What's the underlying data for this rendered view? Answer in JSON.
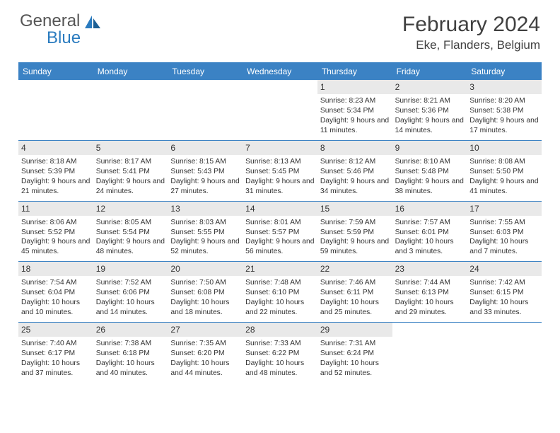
{
  "logo": {
    "text_general": "General",
    "text_blue": "Blue"
  },
  "title": "February 2024",
  "location": "Eke, Flanders, Belgium",
  "colors": {
    "header_blue": "#3b82c4",
    "day_num_bg": "#e9e9e9",
    "text": "#404040",
    "logo_gray": "#565656",
    "logo_blue": "#2a7bbf"
  },
  "days_of_week": [
    "Sunday",
    "Monday",
    "Tuesday",
    "Wednesday",
    "Thursday",
    "Friday",
    "Saturday"
  ],
  "weeks": [
    [
      {
        "n": "",
        "sr": "",
        "ss": "",
        "dl": ""
      },
      {
        "n": "",
        "sr": "",
        "ss": "",
        "dl": ""
      },
      {
        "n": "",
        "sr": "",
        "ss": "",
        "dl": ""
      },
      {
        "n": "",
        "sr": "",
        "ss": "",
        "dl": ""
      },
      {
        "n": "1",
        "sr": "Sunrise: 8:23 AM",
        "ss": "Sunset: 5:34 PM",
        "dl": "Daylight: 9 hours and 11 minutes."
      },
      {
        "n": "2",
        "sr": "Sunrise: 8:21 AM",
        "ss": "Sunset: 5:36 PM",
        "dl": "Daylight: 9 hours and 14 minutes."
      },
      {
        "n": "3",
        "sr": "Sunrise: 8:20 AM",
        "ss": "Sunset: 5:38 PM",
        "dl": "Daylight: 9 hours and 17 minutes."
      }
    ],
    [
      {
        "n": "4",
        "sr": "Sunrise: 8:18 AM",
        "ss": "Sunset: 5:39 PM",
        "dl": "Daylight: 9 hours and 21 minutes."
      },
      {
        "n": "5",
        "sr": "Sunrise: 8:17 AM",
        "ss": "Sunset: 5:41 PM",
        "dl": "Daylight: 9 hours and 24 minutes."
      },
      {
        "n": "6",
        "sr": "Sunrise: 8:15 AM",
        "ss": "Sunset: 5:43 PM",
        "dl": "Daylight: 9 hours and 27 minutes."
      },
      {
        "n": "7",
        "sr": "Sunrise: 8:13 AM",
        "ss": "Sunset: 5:45 PM",
        "dl": "Daylight: 9 hours and 31 minutes."
      },
      {
        "n": "8",
        "sr": "Sunrise: 8:12 AM",
        "ss": "Sunset: 5:46 PM",
        "dl": "Daylight: 9 hours and 34 minutes."
      },
      {
        "n": "9",
        "sr": "Sunrise: 8:10 AM",
        "ss": "Sunset: 5:48 PM",
        "dl": "Daylight: 9 hours and 38 minutes."
      },
      {
        "n": "10",
        "sr": "Sunrise: 8:08 AM",
        "ss": "Sunset: 5:50 PM",
        "dl": "Daylight: 9 hours and 41 minutes."
      }
    ],
    [
      {
        "n": "11",
        "sr": "Sunrise: 8:06 AM",
        "ss": "Sunset: 5:52 PM",
        "dl": "Daylight: 9 hours and 45 minutes."
      },
      {
        "n": "12",
        "sr": "Sunrise: 8:05 AM",
        "ss": "Sunset: 5:54 PM",
        "dl": "Daylight: 9 hours and 48 minutes."
      },
      {
        "n": "13",
        "sr": "Sunrise: 8:03 AM",
        "ss": "Sunset: 5:55 PM",
        "dl": "Daylight: 9 hours and 52 minutes."
      },
      {
        "n": "14",
        "sr": "Sunrise: 8:01 AM",
        "ss": "Sunset: 5:57 PM",
        "dl": "Daylight: 9 hours and 56 minutes."
      },
      {
        "n": "15",
        "sr": "Sunrise: 7:59 AM",
        "ss": "Sunset: 5:59 PM",
        "dl": "Daylight: 9 hours and 59 minutes."
      },
      {
        "n": "16",
        "sr": "Sunrise: 7:57 AM",
        "ss": "Sunset: 6:01 PM",
        "dl": "Daylight: 10 hours and 3 minutes."
      },
      {
        "n": "17",
        "sr": "Sunrise: 7:55 AM",
        "ss": "Sunset: 6:03 PM",
        "dl": "Daylight: 10 hours and 7 minutes."
      }
    ],
    [
      {
        "n": "18",
        "sr": "Sunrise: 7:54 AM",
        "ss": "Sunset: 6:04 PM",
        "dl": "Daylight: 10 hours and 10 minutes."
      },
      {
        "n": "19",
        "sr": "Sunrise: 7:52 AM",
        "ss": "Sunset: 6:06 PM",
        "dl": "Daylight: 10 hours and 14 minutes."
      },
      {
        "n": "20",
        "sr": "Sunrise: 7:50 AM",
        "ss": "Sunset: 6:08 PM",
        "dl": "Daylight: 10 hours and 18 minutes."
      },
      {
        "n": "21",
        "sr": "Sunrise: 7:48 AM",
        "ss": "Sunset: 6:10 PM",
        "dl": "Daylight: 10 hours and 22 minutes."
      },
      {
        "n": "22",
        "sr": "Sunrise: 7:46 AM",
        "ss": "Sunset: 6:11 PM",
        "dl": "Daylight: 10 hours and 25 minutes."
      },
      {
        "n": "23",
        "sr": "Sunrise: 7:44 AM",
        "ss": "Sunset: 6:13 PM",
        "dl": "Daylight: 10 hours and 29 minutes."
      },
      {
        "n": "24",
        "sr": "Sunrise: 7:42 AM",
        "ss": "Sunset: 6:15 PM",
        "dl": "Daylight: 10 hours and 33 minutes."
      }
    ],
    [
      {
        "n": "25",
        "sr": "Sunrise: 7:40 AM",
        "ss": "Sunset: 6:17 PM",
        "dl": "Daylight: 10 hours and 37 minutes."
      },
      {
        "n": "26",
        "sr": "Sunrise: 7:38 AM",
        "ss": "Sunset: 6:18 PM",
        "dl": "Daylight: 10 hours and 40 minutes."
      },
      {
        "n": "27",
        "sr": "Sunrise: 7:35 AM",
        "ss": "Sunset: 6:20 PM",
        "dl": "Daylight: 10 hours and 44 minutes."
      },
      {
        "n": "28",
        "sr": "Sunrise: 7:33 AM",
        "ss": "Sunset: 6:22 PM",
        "dl": "Daylight: 10 hours and 48 minutes."
      },
      {
        "n": "29",
        "sr": "Sunrise: 7:31 AM",
        "ss": "Sunset: 6:24 PM",
        "dl": "Daylight: 10 hours and 52 minutes."
      },
      {
        "n": "",
        "sr": "",
        "ss": "",
        "dl": ""
      },
      {
        "n": "",
        "sr": "",
        "ss": "",
        "dl": ""
      }
    ]
  ]
}
